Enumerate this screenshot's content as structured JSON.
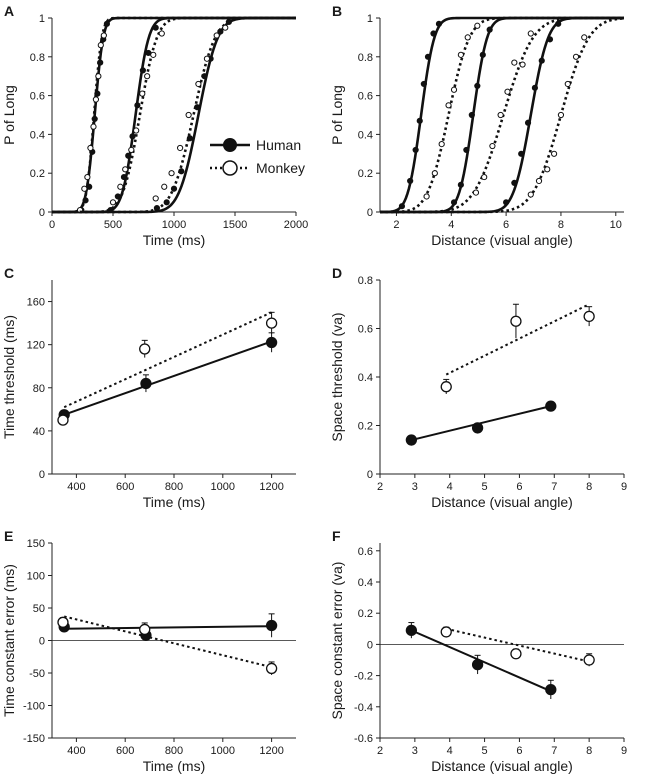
{
  "legend": {
    "human": "Human",
    "monkey": "Monkey"
  },
  "chart_data": [
    {
      "label": "A",
      "type": "line",
      "subtype": "psychometric",
      "xlabel": "Time (ms)",
      "ylabel": "P of Long",
      "xlim": [
        0,
        2000
      ],
      "ylim": [
        0,
        1
      ],
      "xticks": [
        0,
        500,
        1000,
        1500,
        2000
      ],
      "yticks": [
        0,
        0.2,
        0.4,
        0.6,
        0.8,
        1
      ],
      "series": [
        {
          "name": "Human",
          "style": "solid",
          "marker": "filled",
          "curves": [
            {
              "mu": 350,
              "sigma": 55,
              "points": [
                [
                  240,
                  0.01
                ],
                [
                  275,
                  0.06
                ],
                [
                  305,
                  0.13
                ],
                [
                  330,
                  0.31
                ],
                [
                  350,
                  0.48
                ],
                [
                  372,
                  0.61
                ],
                [
                  395,
                  0.77
                ],
                [
                  420,
                  0.89
                ],
                [
                  450,
                  0.97
                ]
              ]
            },
            {
              "mu": 685,
              "sigma": 85,
              "points": [
                [
                  480,
                  0.01
                ],
                [
                  540,
                  0.08
                ],
                [
                  590,
                  0.18
                ],
                [
                  625,
                  0.29
                ],
                [
                  660,
                  0.39
                ],
                [
                  700,
                  0.55
                ],
                [
                  745,
                  0.73
                ],
                [
                  790,
                  0.82
                ],
                [
                  850,
                  0.95
                ]
              ]
            },
            {
              "mu": 1200,
              "sigma": 125,
              "points": [
                [
                  860,
                  0.02
                ],
                [
                  940,
                  0.05
                ],
                [
                  1000,
                  0.12
                ],
                [
                  1060,
                  0.21
                ],
                [
                  1130,
                  0.38
                ],
                [
                  1190,
                  0.54
                ],
                [
                  1250,
                  0.7
                ],
                [
                  1300,
                  0.79
                ],
                [
                  1380,
                  0.93
                ],
                [
                  1450,
                  0.98
                ]
              ]
            }
          ]
        },
        {
          "name": "Monkey",
          "style": "dotted",
          "marker": "open",
          "curves": [
            {
              "mu": 345,
              "sigma": 50,
              "points": [
                [
                  230,
                  0.01
                ],
                [
                  265,
                  0.12
                ],
                [
                  290,
                  0.18
                ],
                [
                  315,
                  0.33
                ],
                [
                  340,
                  0.44
                ],
                [
                  360,
                  0.58
                ],
                [
                  380,
                  0.7
                ],
                [
                  400,
                  0.86
                ],
                [
                  425,
                  0.91
                ]
              ]
            },
            {
              "mu": 720,
              "sigma": 110,
              "points": [
                [
                  500,
                  0.05
                ],
                [
                  560,
                  0.13
                ],
                [
                  600,
                  0.22
                ],
                [
                  650,
                  0.32
                ],
                [
                  690,
                  0.42
                ],
                [
                  740,
                  0.61
                ],
                [
                  780,
                  0.7
                ],
                [
                  830,
                  0.81
                ],
                [
                  900,
                  0.92
                ]
              ]
            },
            {
              "mu": 1160,
              "sigma": 140,
              "points": [
                [
                  850,
                  0.07
                ],
                [
                  920,
                  0.13
                ],
                [
                  980,
                  0.2
                ],
                [
                  1050,
                  0.33
                ],
                [
                  1120,
                  0.5
                ],
                [
                  1200,
                  0.66
                ],
                [
                  1270,
                  0.79
                ],
                [
                  1350,
                  0.91
                ],
                [
                  1420,
                  0.95
                ]
              ]
            }
          ]
        }
      ]
    },
    {
      "label": "B",
      "type": "line",
      "subtype": "psychometric",
      "xlabel": "Distance (visual angle)",
      "ylabel": "P of Long",
      "xlim": [
        1.4,
        10.3
      ],
      "ylim": [
        0,
        1
      ],
      "xticks": [
        2,
        4,
        6,
        8,
        10
      ],
      "yticks": [
        0,
        0.2,
        0.4,
        0.6,
        0.8,
        1
      ],
      "series": [
        {
          "name": "Human",
          "style": "solid",
          "marker": "filled",
          "curves": [
            {
              "mu": 2.9,
              "sigma": 0.38,
              "points": [
                [
                  2.2,
                  0.03
                ],
                [
                  2.5,
                  0.16
                ],
                [
                  2.7,
                  0.32
                ],
                [
                  2.85,
                  0.47
                ],
                [
                  3.0,
                  0.66
                ],
                [
                  3.15,
                  0.8
                ],
                [
                  3.35,
                  0.92
                ],
                [
                  3.55,
                  0.97
                ]
              ]
            },
            {
              "mu": 4.8,
              "sigma": 0.4,
              "points": [
                [
                  4.1,
                  0.05
                ],
                [
                  4.35,
                  0.14
                ],
                [
                  4.55,
                  0.32
                ],
                [
                  4.75,
                  0.5
                ],
                [
                  4.95,
                  0.65
                ],
                [
                  5.15,
                  0.81
                ],
                [
                  5.4,
                  0.94
                ]
              ]
            },
            {
              "mu": 6.9,
              "sigma": 0.5,
              "points": [
                [
                  6.0,
                  0.05
                ],
                [
                  6.3,
                  0.15
                ],
                [
                  6.55,
                  0.3
                ],
                [
                  6.8,
                  0.46
                ],
                [
                  7.05,
                  0.64
                ],
                [
                  7.3,
                  0.78
                ],
                [
                  7.6,
                  0.89
                ],
                [
                  7.9,
                  0.97
                ]
              ]
            }
          ]
        },
        {
          "name": "Monkey",
          "style": "dotted",
          "marker": "open",
          "curves": [
            {
              "mu": 3.9,
              "sigma": 0.6,
              "points": [
                [
                  3.1,
                  0.08
                ],
                [
                  3.4,
                  0.2
                ],
                [
                  3.65,
                  0.35
                ],
                [
                  3.9,
                  0.55
                ],
                [
                  4.1,
                  0.63
                ],
                [
                  4.35,
                  0.81
                ],
                [
                  4.6,
                  0.9
                ],
                [
                  4.95,
                  0.96
                ]
              ]
            },
            {
              "mu": 5.9,
              "sigma": 0.85,
              "points": [
                [
                  4.9,
                  0.1
                ],
                [
                  5.2,
                  0.18
                ],
                [
                  5.5,
                  0.34
                ],
                [
                  5.8,
                  0.5
                ],
                [
                  6.05,
                  0.62
                ],
                [
                  6.3,
                  0.77
                ],
                [
                  6.6,
                  0.76
                ],
                [
                  6.9,
                  0.92
                ]
              ]
            },
            {
              "mu": 8.0,
              "sigma": 0.8,
              "points": [
                [
                  6.9,
                  0.09
                ],
                [
                  7.2,
                  0.16
                ],
                [
                  7.5,
                  0.22
                ],
                [
                  7.75,
                  0.3
                ],
                [
                  8.0,
                  0.5
                ],
                [
                  8.25,
                  0.66
                ],
                [
                  8.55,
                  0.8
                ],
                [
                  8.85,
                  0.9
                ]
              ]
            }
          ]
        }
      ]
    },
    {
      "label": "C",
      "type": "scatter",
      "xlabel": "Time (ms)",
      "ylabel": "Time threshold (ms)",
      "xlim": [
        300,
        1300
      ],
      "ylim": [
        0,
        180
      ],
      "xticks": [
        400,
        600,
        800,
        1000,
        1200
      ],
      "yticks": [
        0,
        40,
        80,
        120,
        160
      ],
      "series": [
        {
          "name": "Human",
          "style": "solid",
          "marker": "filled",
          "x": [
            350,
            685,
            1200
          ],
          "y": [
            55,
            84,
            122
          ],
          "err": [
            3,
            8,
            9
          ],
          "fit": [
            [
              350,
              55
            ],
            [
              1200,
              123
            ]
          ]
        },
        {
          "name": "Monkey",
          "style": "dotted",
          "marker": "open",
          "x": [
            345,
            680,
            1200
          ],
          "y": [
            50,
            116,
            140
          ],
          "err": [
            3,
            8,
            10
          ],
          "fit": [
            [
              350,
              62
            ],
            [
              1200,
              150
            ]
          ]
        }
      ]
    },
    {
      "label": "D",
      "type": "scatter",
      "xlabel": "Distance (visual angle)",
      "ylabel": "Space threshold (va)",
      "xlim": [
        2,
        9
      ],
      "ylim": [
        0,
        0.8
      ],
      "xticks": [
        2,
        3,
        4,
        5,
        6,
        7,
        8,
        9
      ],
      "yticks": [
        0,
        0.2,
        0.4,
        0.6,
        0.8
      ],
      "series": [
        {
          "name": "Human",
          "style": "solid",
          "marker": "filled",
          "x": [
            2.9,
            4.8,
            6.9
          ],
          "y": [
            0.14,
            0.19,
            0.28
          ],
          "err": [
            0.01,
            0.01,
            0.01
          ],
          "fit": [
            [
              2.9,
              0.14
            ],
            [
              6.9,
              0.28
            ]
          ]
        },
        {
          "name": "Monkey",
          "style": "dotted",
          "marker": "open",
          "x": [
            3.9,
            5.9,
            8.0
          ],
          "y": [
            0.36,
            0.63,
            0.65
          ],
          "err": [
            0.03,
            0.07,
            0.04
          ],
          "fit": [
            [
              3.9,
              0.41
            ],
            [
              8.0,
              0.7
            ]
          ]
        }
      ]
    },
    {
      "label": "E",
      "type": "scatter",
      "xlabel": "Time (ms)",
      "ylabel": "Time constant error (ms)",
      "xlim": [
        300,
        1300
      ],
      "ylim": [
        -150,
        150
      ],
      "xticks": [
        400,
        600,
        800,
        1000,
        1200
      ],
      "yticks": [
        -150,
        -100,
        -50,
        0,
        50,
        100,
        150
      ],
      "zero_line": true,
      "series": [
        {
          "name": "Human",
          "style": "solid",
          "marker": "filled",
          "x": [
            350,
            685,
            1200
          ],
          "y": [
            21,
            8,
            23
          ],
          "err": [
            8,
            8,
            18
          ],
          "fit": [
            [
              350,
              18
            ],
            [
              1200,
              22
            ]
          ]
        },
        {
          "name": "Monkey",
          "style": "dotted",
          "marker": "open",
          "x": [
            345,
            680,
            1200
          ],
          "y": [
            28,
            17,
            -43
          ],
          "err": [
            7,
            10,
            10
          ],
          "fit": [
            [
              350,
              37
            ],
            [
              1200,
              -41
            ]
          ]
        }
      ]
    },
    {
      "label": "F",
      "type": "scatter",
      "xlabel": "Distance (visual angle)",
      "ylabel": "Space constant error (va)",
      "xlim": [
        2,
        9
      ],
      "ylim": [
        -0.6,
        0.65
      ],
      "xticks": [
        2,
        3,
        4,
        5,
        6,
        7,
        8,
        9
      ],
      "yticks": [
        -0.6,
        -0.4,
        -0.2,
        0,
        0.2,
        0.4,
        0.6
      ],
      "zero_line": true,
      "series": [
        {
          "name": "Human",
          "style": "solid",
          "marker": "filled",
          "x": [
            2.9,
            4.8,
            6.9
          ],
          "y": [
            0.09,
            -0.13,
            -0.29
          ],
          "err": [
            0.05,
            0.06,
            0.06
          ],
          "fit": [
            [
              2.9,
              0.09
            ],
            [
              6.9,
              -0.3
            ]
          ]
        },
        {
          "name": "Monkey",
          "style": "dotted",
          "marker": "open",
          "x": [
            3.9,
            5.9,
            8.0
          ],
          "y": [
            0.08,
            -0.06,
            -0.1
          ],
          "err": [
            0.03,
            0.03,
            0.04
          ],
          "fit": [
            [
              3.9,
              0.1
            ],
            [
              8.0,
              -0.11
            ]
          ]
        }
      ]
    }
  ]
}
